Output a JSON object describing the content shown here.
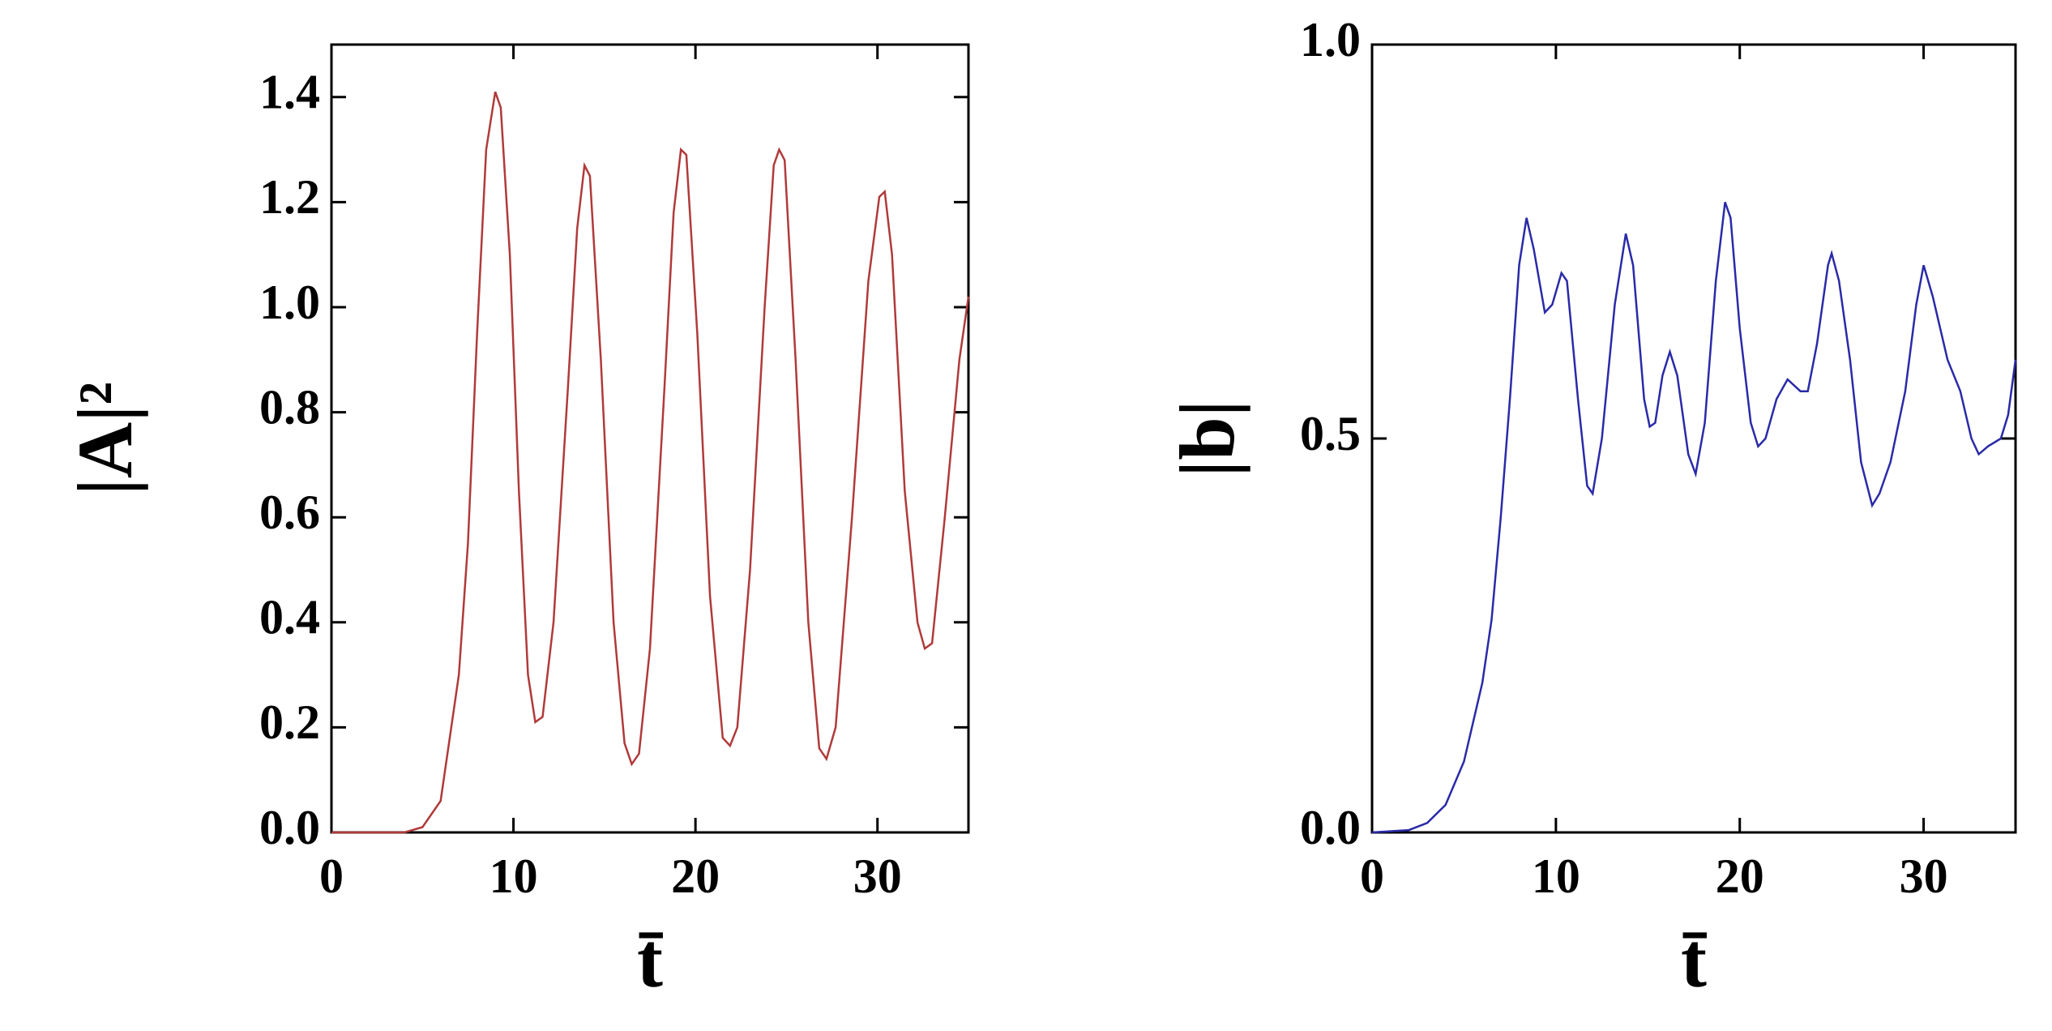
{
  "chart_data": [
    {
      "type": "line",
      "ylabel": "|A|²",
      "xlabel": "t̄",
      "xlim": [
        0,
        35
      ],
      "xticks": [
        0,
        10,
        20,
        30
      ],
      "ylim": [
        0,
        1.5
      ],
      "yticks": [
        {
          "value": 0,
          "label": "0.0"
        },
        {
          "value": 0.2,
          "label": "0.2"
        },
        {
          "value": 0.4,
          "label": "0.4"
        },
        {
          "value": 0.6,
          "label": "0.6"
        },
        {
          "value": 0.8,
          "label": "0.8"
        },
        {
          "value": 1.0,
          "label": "1.0"
        },
        {
          "value": 1.2,
          "label": "1.2"
        },
        {
          "value": 1.4,
          "label": "1.4"
        }
      ],
      "color": "#b03a3a",
      "x": [
        0,
        4,
        5,
        6,
        7,
        7.5,
        8,
        8.5,
        9,
        9.3,
        9.8,
        10.3,
        10.8,
        11.2,
        11.6,
        12.2,
        13,
        13.5,
        13.9,
        14.2,
        14.8,
        15.5,
        16.1,
        16.5,
        16.9,
        17.5,
        18.3,
        18.8,
        19.2,
        19.5,
        20.1,
        20.8,
        21.5,
        21.9,
        22.3,
        23.0,
        23.8,
        24.3,
        24.6,
        24.9,
        25.5,
        26.2,
        26.8,
        27.2,
        27.7,
        28.6,
        29.5,
        30.1,
        30.4,
        30.8,
        31.5,
        32.2,
        32.6,
        33.0,
        33.7,
        34.5,
        35
      ],
      "values": [
        0,
        0,
        0.01,
        0.06,
        0.3,
        0.55,
        0.95,
        1.3,
        1.41,
        1.38,
        1.1,
        0.65,
        0.3,
        0.21,
        0.22,
        0.4,
        0.85,
        1.15,
        1.27,
        1.25,
        0.9,
        0.4,
        0.17,
        0.13,
        0.15,
        0.35,
        0.85,
        1.18,
        1.3,
        1.29,
        0.95,
        0.45,
        0.18,
        0.165,
        0.2,
        0.5,
        1.0,
        1.27,
        1.3,
        1.28,
        0.9,
        0.4,
        0.16,
        0.14,
        0.2,
        0.6,
        1.05,
        1.21,
        1.22,
        1.1,
        0.65,
        0.4,
        0.35,
        0.36,
        0.6,
        0.9,
        1.02
      ]
    },
    {
      "type": "line",
      "ylabel": "|b|",
      "xlabel": "t̄",
      "xlim": [
        0,
        35
      ],
      "xticks": [
        0,
        10,
        20,
        30
      ],
      "ylim": [
        0,
        1
      ],
      "yticks": [
        {
          "value": 0,
          "label": "0.0"
        },
        {
          "value": 0.5,
          "label": "0.5"
        },
        {
          "value": 1.0,
          "label": "1.0"
        }
      ],
      "color": "#2a2aa8",
      "x": [
        0,
        2,
        3,
        4,
        5,
        6,
        6.5,
        7,
        7.5,
        8,
        8.4,
        8.8,
        9.4,
        9.8,
        10.3,
        10.6,
        11.2,
        11.7,
        12,
        12.5,
        13.2,
        13.8,
        14.2,
        14.8,
        15.1,
        15.4,
        15.8,
        16.2,
        16.6,
        17.2,
        17.6,
        18.1,
        18.7,
        19.2,
        19.5,
        20,
        20.6,
        21,
        21.4,
        22,
        22.6,
        23.3,
        23.7,
        24.2,
        24.8,
        25,
        25.4,
        26,
        26.6,
        27.2,
        27.6,
        28.2,
        29,
        29.6,
        30,
        30.5,
        31.3,
        32,
        32.6,
        33,
        33.5,
        34.2,
        34.6,
        35
      ],
      "values": [
        0,
        0.003,
        0.012,
        0.035,
        0.09,
        0.19,
        0.27,
        0.4,
        0.55,
        0.72,
        0.78,
        0.74,
        0.66,
        0.67,
        0.71,
        0.7,
        0.55,
        0.44,
        0.43,
        0.5,
        0.67,
        0.76,
        0.72,
        0.55,
        0.515,
        0.52,
        0.58,
        0.61,
        0.58,
        0.48,
        0.455,
        0.52,
        0.7,
        0.8,
        0.78,
        0.64,
        0.52,
        0.49,
        0.5,
        0.55,
        0.575,
        0.56,
        0.56,
        0.62,
        0.72,
        0.735,
        0.7,
        0.6,
        0.47,
        0.415,
        0.43,
        0.47,
        0.56,
        0.67,
        0.72,
        0.68,
        0.6,
        0.56,
        0.5,
        0.48,
        0.49,
        0.5,
        0.53,
        0.6
      ]
    }
  ]
}
